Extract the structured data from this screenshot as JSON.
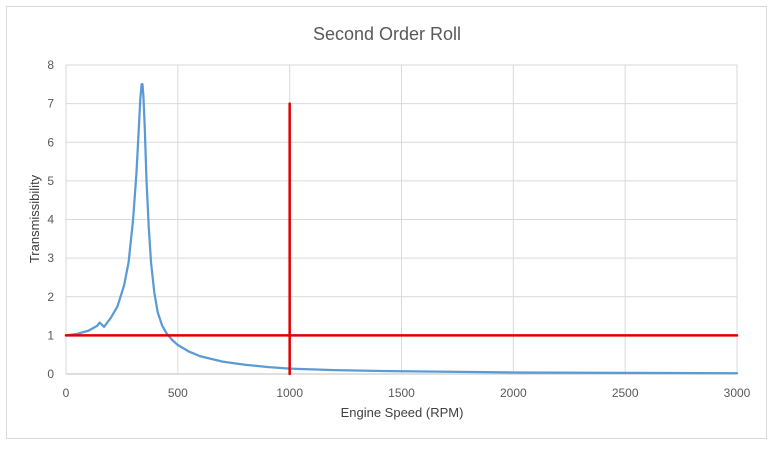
{
  "chart_data": {
    "type": "line",
    "title": "Second Order Roll",
    "xlabel": "Engine Speed (RPM)",
    "ylabel": "Transmissibility",
    "xlim": [
      0,
      3000
    ],
    "ylim": [
      0,
      8
    ],
    "xticks": [
      "0",
      "500",
      "1000",
      "1500",
      "2000",
      "2500",
      "3000"
    ],
    "yticks": [
      "0",
      "1",
      "2",
      "3",
      "4",
      "5",
      "6",
      "7",
      "8"
    ],
    "grid": true,
    "series": [
      {
        "color": "#5b9bd5",
        "x": [
          0,
          50,
          100,
          140,
          150,
          160,
          170,
          200,
          230,
          260,
          280,
          300,
          315,
          325,
          332,
          338,
          342,
          346,
          352,
          360,
          370,
          380,
          395,
          410,
          430,
          450,
          475,
          500,
          550,
          600,
          700,
          800,
          900,
          1000,
          1200,
          1500,
          2000,
          2500,
          3000
        ],
        "y": [
          1.0,
          1.04,
          1.12,
          1.25,
          1.33,
          1.28,
          1.22,
          1.45,
          1.75,
          2.3,
          2.9,
          4.0,
          5.2,
          6.3,
          7.1,
          7.5,
          7.5,
          7.2,
          6.4,
          5.0,
          3.8,
          2.9,
          2.1,
          1.6,
          1.25,
          1.05,
          0.88,
          0.75,
          0.58,
          0.46,
          0.32,
          0.24,
          0.18,
          0.14,
          0.1,
          0.07,
          0.04,
          0.03,
          0.02
        ]
      },
      {
        "color": "#e00000",
        "x": [
          0,
          3000
        ],
        "y": [
          1,
          1
        ]
      },
      {
        "color": "#e00000",
        "x": [
          1000,
          1000
        ],
        "y": [
          0,
          7
        ]
      }
    ]
  }
}
